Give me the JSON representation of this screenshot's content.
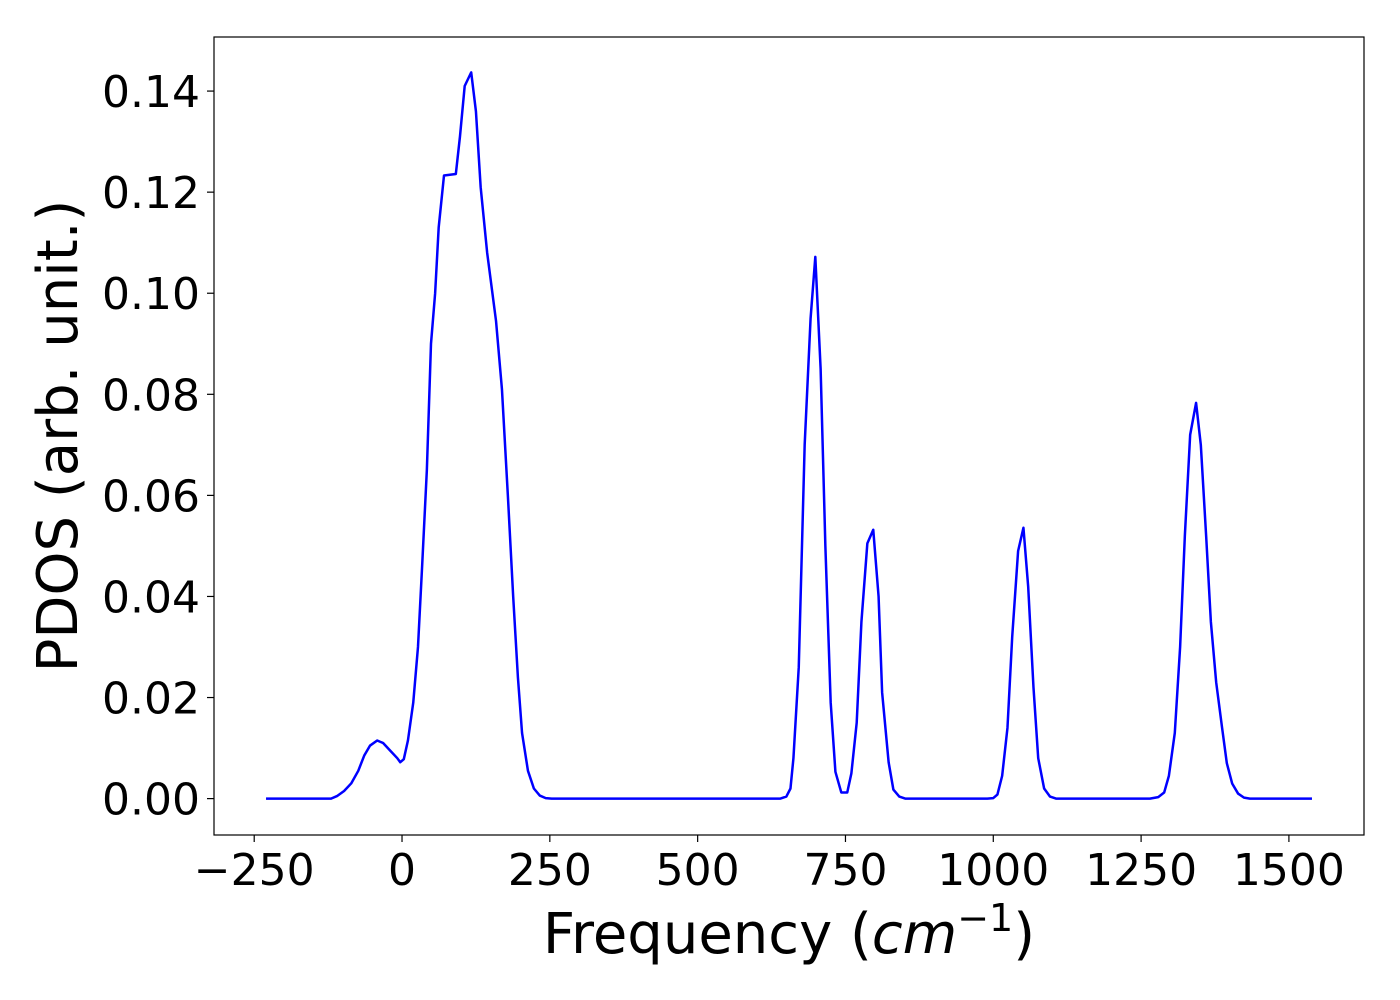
{
  "chart_data": {
    "type": "line",
    "xlabel": [
      "Frequency (",
      "cm",
      "−1",
      ")"
    ],
    "ylabel": "PDOS (arb. unit.)",
    "xlim": [
      -318,
      1627
    ],
    "ylim": [
      -0.0072,
      0.1507
    ],
    "xticks": [
      {
        "value": -250,
        "label": "−250"
      },
      0,
      250,
      500,
      750,
      1000,
      1250,
      1500
    ],
    "yticks": [
      {
        "value": 0,
        "label": "0.00"
      },
      {
        "value": 0.02,
        "label": "0.02"
      },
      {
        "value": 0.04,
        "label": "0.04"
      },
      {
        "value": 0.06,
        "label": "0.06"
      },
      {
        "value": 0.08,
        "label": "0.08"
      },
      {
        "value": 0.1,
        "label": "0.10"
      },
      {
        "value": 0.12,
        "label": "0.12"
      },
      {
        "value": 0.14,
        "label": "0.14"
      }
    ],
    "grid": false,
    "series": [
      {
        "color": "#0000ff",
        "x": [
          -230,
          -120,
          -110,
          -98,
          -86,
          -74,
          -64,
          -54,
          -42,
          -32,
          -20,
          -8,
          -3,
          3,
          10,
          19,
          27,
          34,
          42,
          49,
          56,
          62,
          71,
          91,
          98,
          106,
          117,
          125,
          133,
          144,
          159,
          169,
          179,
          188,
          196,
          203,
          213,
          223,
          233,
          243,
          253,
          640,
          650,
          657,
          662,
          671,
          681,
          691,
          699,
          708,
          716,
          725,
          733,
          743,
          753,
          760,
          769,
          777,
          787,
          797,
          806,
          812,
          823,
          831,
          841,
          851,
          990,
          1000,
          1007,
          1015,
          1024,
          1032,
          1042,
          1051,
          1059,
          1068,
          1076,
          1086,
          1096,
          1106,
          1265,
          1279,
          1289,
          1297,
          1307,
          1316,
          1324,
          1333,
          1343,
          1351,
          1360,
          1368,
          1377,
          1387,
          1395,
          1404,
          1414,
          1424,
          1434,
          1539
        ],
        "values": [
          0,
          0,
          0.0005,
          0.0015,
          0.003,
          0.0055,
          0.0085,
          0.0105,
          0.0115,
          0.011,
          0.0095,
          0.008,
          0.0072,
          0.0078,
          0.0115,
          0.019,
          0.03,
          0.046,
          0.065,
          0.09,
          0.1,
          0.113,
          0.1233,
          0.1236,
          0.131,
          0.141,
          0.1437,
          0.136,
          0.121,
          0.108,
          0.0945,
          0.081,
          0.06,
          0.04,
          0.024,
          0.013,
          0.0055,
          0.002,
          0.0006,
          0.0001,
          0,
          0,
          0.0004,
          0.002,
          0.008,
          0.026,
          0.07,
          0.095,
          0.1072,
          0.085,
          0.05,
          0.019,
          0.0053,
          0.0012,
          0.0012,
          0.005,
          0.015,
          0.035,
          0.0505,
          0.0532,
          0.04,
          0.021,
          0.0072,
          0.0018,
          0.0004,
          0,
          0,
          0.0001,
          0.0008,
          0.0045,
          0.014,
          0.032,
          0.049,
          0.0536,
          0.042,
          0.022,
          0.008,
          0.002,
          0.0004,
          0,
          0,
          0.0003,
          0.0012,
          0.0045,
          0.013,
          0.03,
          0.052,
          0.072,
          0.0783,
          0.07,
          0.052,
          0.035,
          0.023,
          0.014,
          0.007,
          0.003,
          0.001,
          0.0002,
          0,
          0
        ]
      }
    ]
  }
}
